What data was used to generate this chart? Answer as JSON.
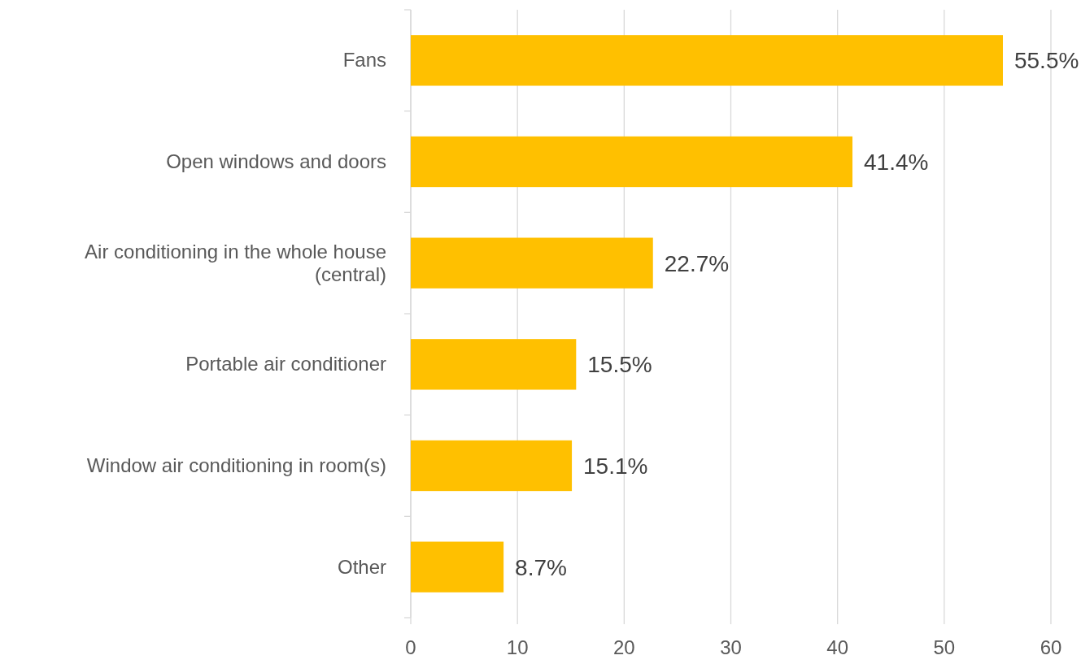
{
  "chart_data": {
    "type": "bar",
    "orientation": "horizontal",
    "categories": [
      "Fans",
      "Open windows and doors",
      "Air conditioning in the whole house (central)",
      "Portable air conditioner",
      "Window air conditioning in room(s)",
      "Other"
    ],
    "values": [
      55.5,
      41.4,
      22.7,
      15.5,
      15.1,
      8.7
    ],
    "value_labels": [
      "55.5%",
      "41.4%",
      "22.7%",
      "15.5%",
      "15.1%",
      "8.7%"
    ],
    "color": "#ffc000",
    "xlim": [
      0,
      60
    ],
    "xticks": [
      0,
      10,
      20,
      30,
      40,
      50,
      60
    ],
    "grid": "x"
  }
}
